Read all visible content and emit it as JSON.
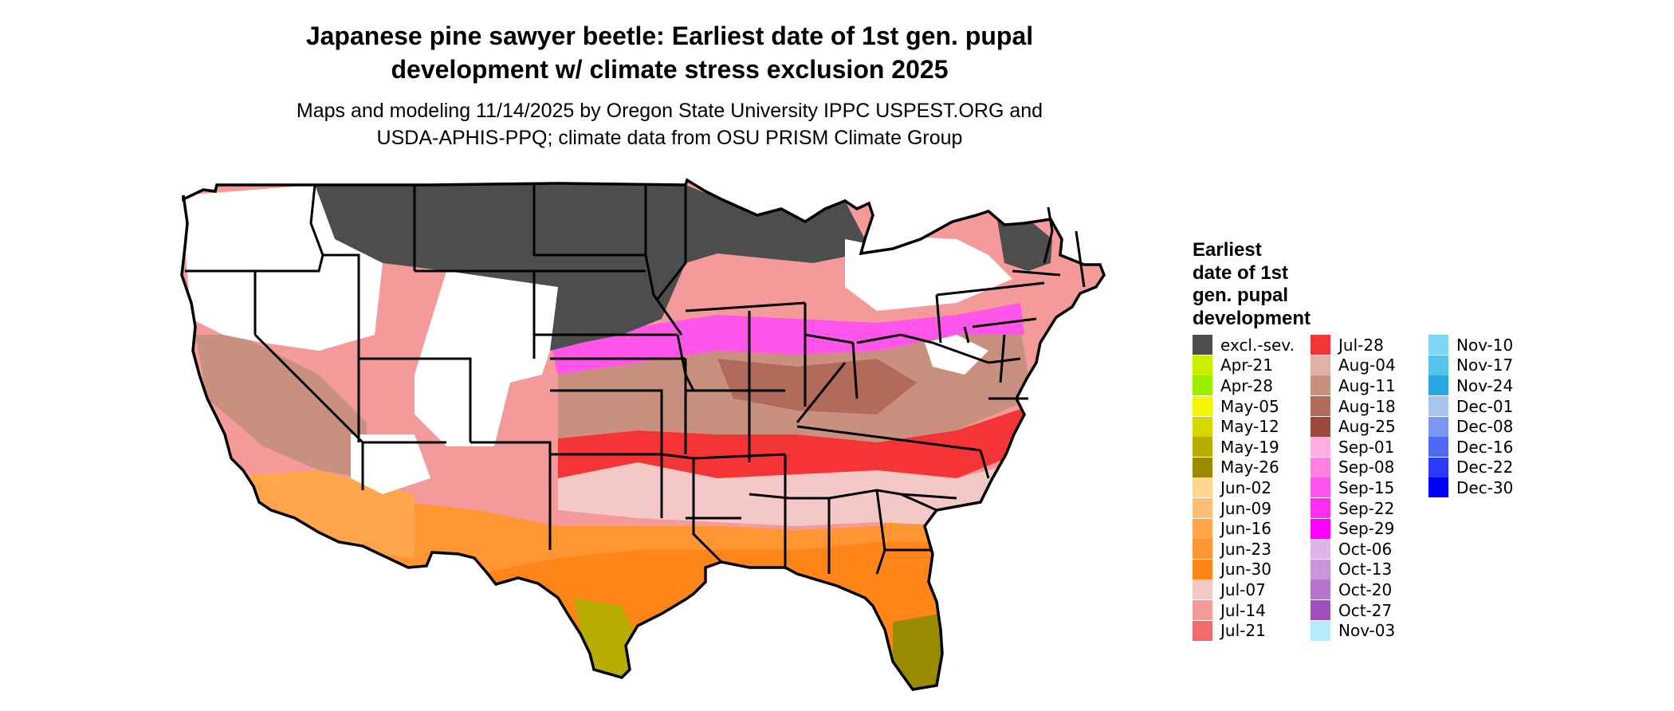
{
  "title": {
    "line1": "Japanese pine sawyer beetle: Earliest date of 1st gen. pupal",
    "line2": "development w/ climate stress exclusion 2025"
  },
  "subtitle": {
    "line1": "Maps and modeling 11/14/2025 by Oregon State University IPPC USPEST.ORG and",
    "line2": "USDA-APHIS-PPQ; climate data from OSU PRISM Climate Group"
  },
  "legend": {
    "title": [
      "Earliest",
      "date of 1st",
      "gen. pupal",
      "development"
    ],
    "items": [
      {
        "label": "excl.-sev.",
        "color": "#4d4d4d"
      },
      {
        "label": "Apr-21",
        "color": "#c8f000"
      },
      {
        "label": "Apr-28",
        "color": "#9aee00"
      },
      {
        "label": "May-05",
        "color": "#f5f500"
      },
      {
        "label": "May-12",
        "color": "#d6d600"
      },
      {
        "label": "May-19",
        "color": "#b8ac00"
      },
      {
        "label": "May-26",
        "color": "#9a8a00"
      },
      {
        "label": "Jun-02",
        "color": "#ffd58f"
      },
      {
        "label": "Jun-09",
        "color": "#ffbf73"
      },
      {
        "label": "Jun-16",
        "color": "#ffa64d"
      },
      {
        "label": "Jun-23",
        "color": "#ff9633"
      },
      {
        "label": "Jun-30",
        "color": "#ff8518"
      },
      {
        "label": "Jul-07",
        "color": "#f5c8c8"
      },
      {
        "label": "Jul-14",
        "color": "#f59a9a"
      },
      {
        "label": "Jul-21",
        "color": "#f56b6b"
      },
      {
        "label": "Jul-28",
        "color": "#f53535"
      },
      {
        "label": "Aug-04",
        "color": "#e0b2a5"
      },
      {
        "label": "Aug-11",
        "color": "#c9907f"
      },
      {
        "label": "Aug-18",
        "color": "#b26a5a"
      },
      {
        "label": "Aug-25",
        "color": "#9a4a38"
      },
      {
        "label": "Sep-01",
        "color": "#ffb0e0"
      },
      {
        "label": "Sep-08",
        "color": "#ff80df"
      },
      {
        "label": "Sep-15",
        "color": "#ff55ea"
      },
      {
        "label": "Sep-22",
        "color": "#ff2ef0"
      },
      {
        "label": "Sep-29",
        "color": "#ff00ff"
      },
      {
        "label": "Oct-06",
        "color": "#ddb6e6"
      },
      {
        "label": "Oct-13",
        "color": "#cc95d9"
      },
      {
        "label": "Oct-20",
        "color": "#b874cc"
      },
      {
        "label": "Oct-27",
        "color": "#a050bd"
      },
      {
        "label": "Nov-03",
        "color": "#b3ebff"
      },
      {
        "label": "Nov-10",
        "color": "#80d6f2"
      },
      {
        "label": "Nov-17",
        "color": "#55c3ec"
      },
      {
        "label": "Nov-24",
        "color": "#2aa7df"
      },
      {
        "label": "Dec-01",
        "color": "#a7c3f0"
      },
      {
        "label": "Dec-08",
        "color": "#7a97f0"
      },
      {
        "label": "Dec-16",
        "color": "#5069f2"
      },
      {
        "label": "Dec-22",
        "color": "#2a3af5"
      },
      {
        "label": "Dec-30",
        "color": "#0000ff"
      }
    ]
  },
  "map_colors": {
    "outline": "#000000",
    "excluded": "#4d4d4d",
    "no_data": "#ffffff"
  }
}
